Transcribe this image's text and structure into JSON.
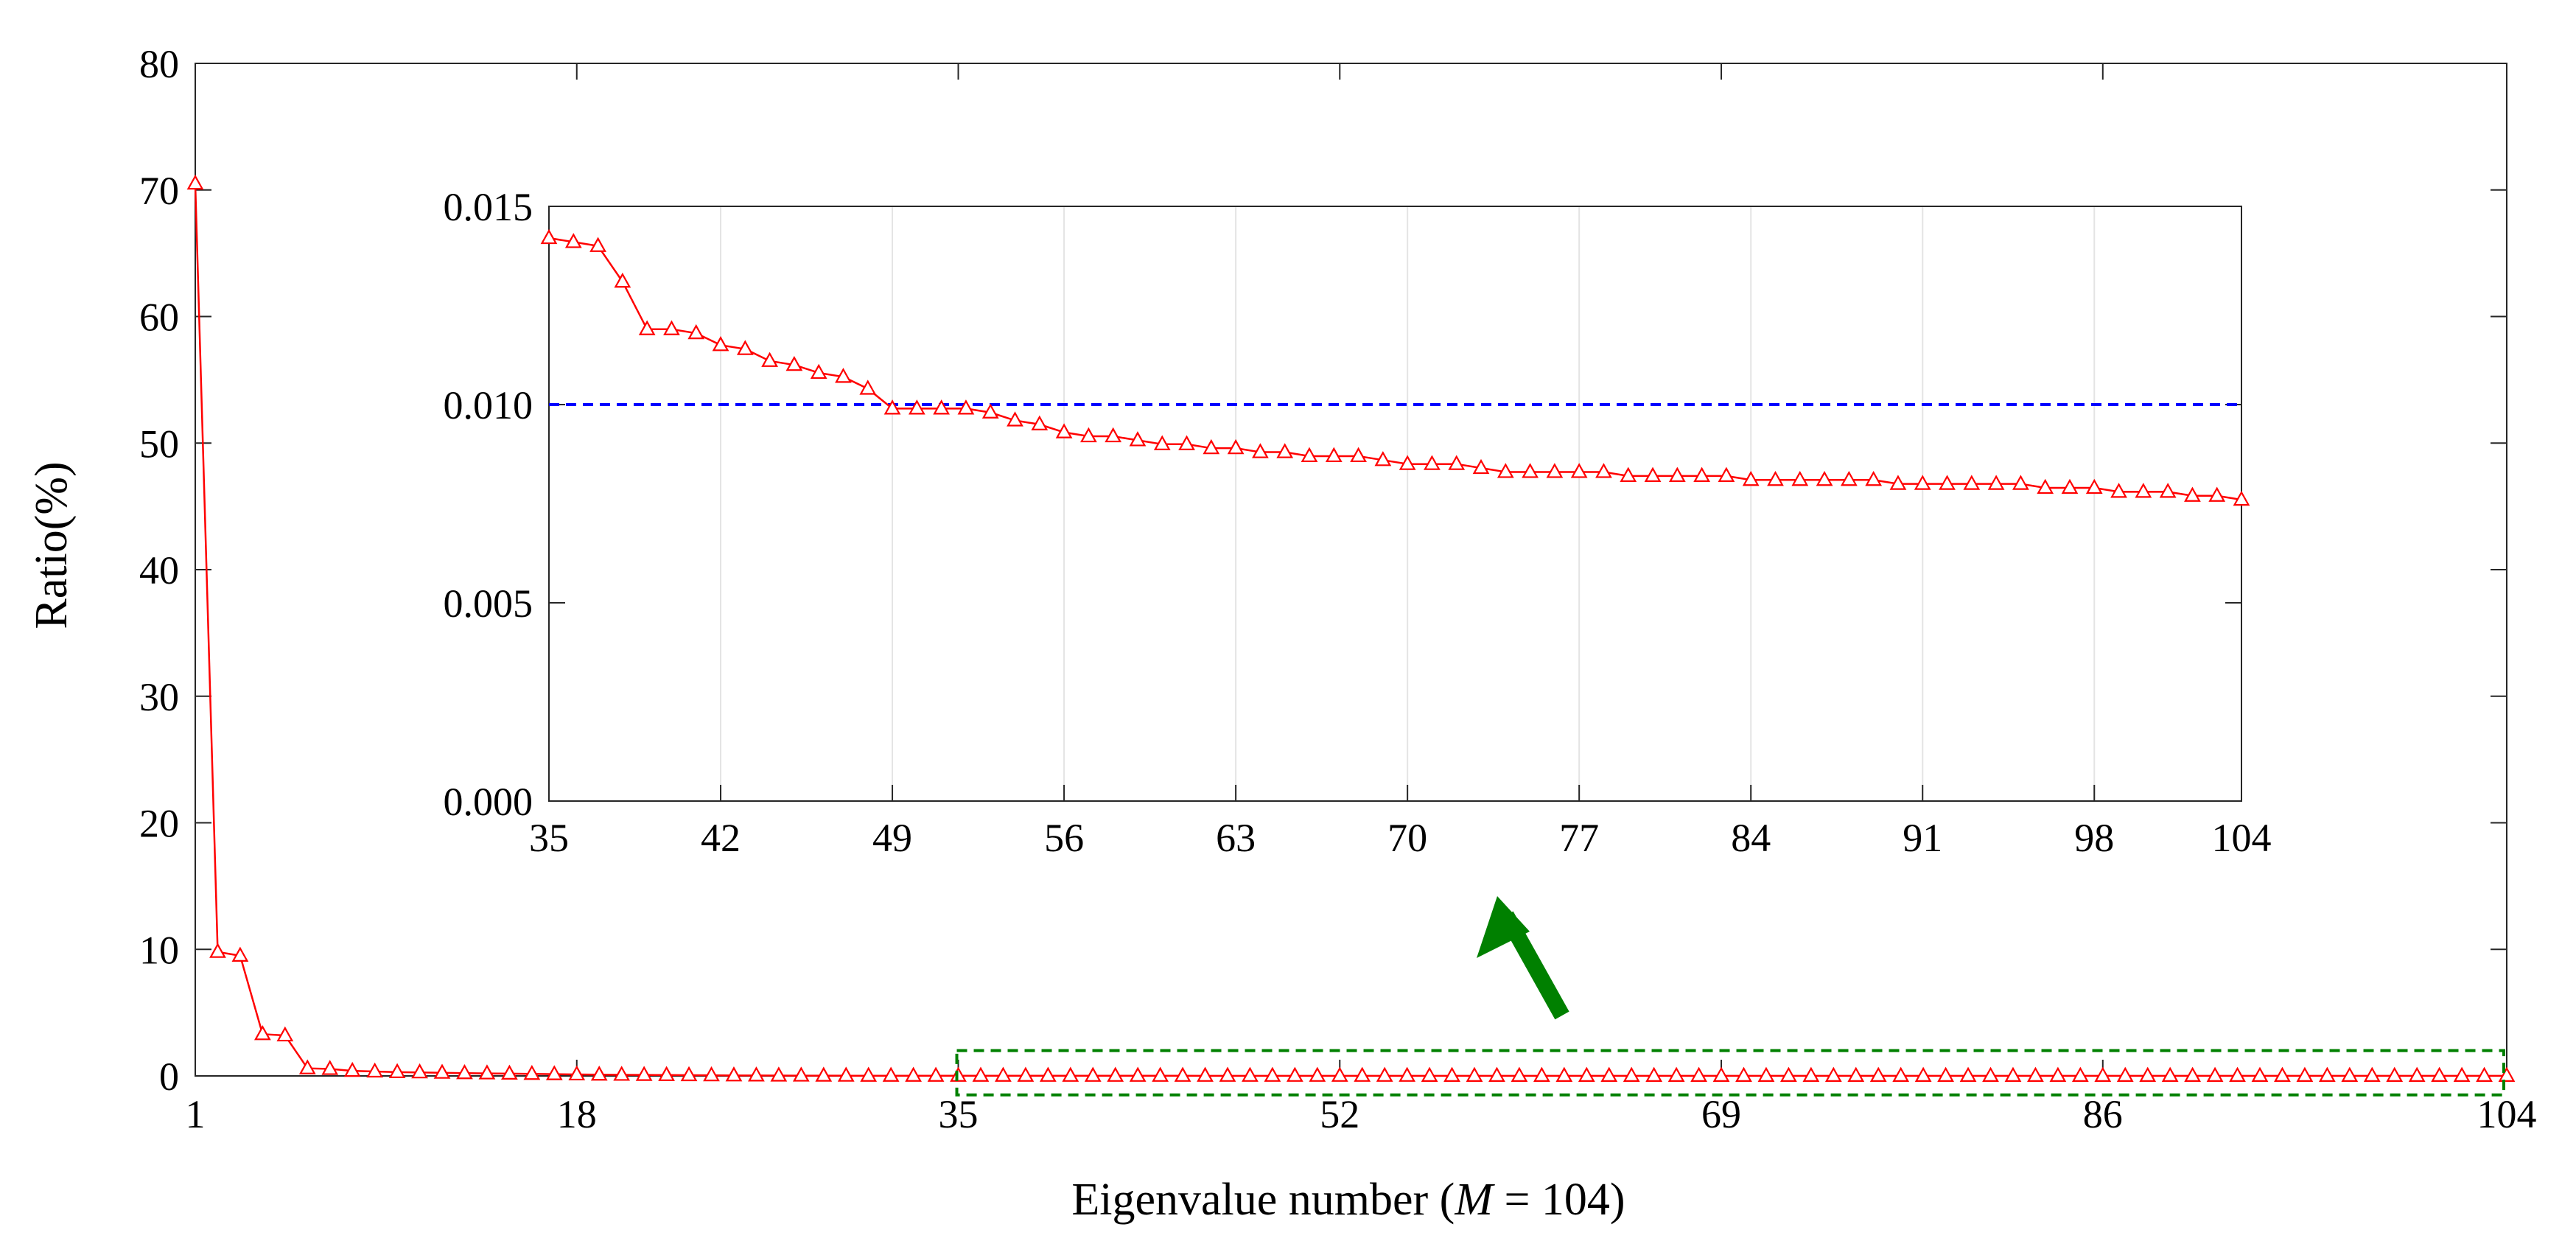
{
  "chart_data": [
    {
      "type": "line",
      "title": "",
      "xlabel": "Eigenvalue number (",
      "xlabel_italic": "M",
      "xlabel_tail": " = 104)",
      "ylabel": "Ratio(%)",
      "xlim": [
        1,
        104
      ],
      "ylim": [
        0,
        80
      ],
      "xticks": [
        "1",
        "18",
        "35",
        "52",
        "69",
        "86",
        "104"
      ],
      "yticks": [
        "0",
        "10",
        "20",
        "30",
        "40",
        "50",
        "60",
        "70",
        "80"
      ],
      "grid": false,
      "series": [
        {
          "color": "#ff0000",
          "marker": "triangle",
          "x": [
            1,
            2,
            3,
            4,
            5,
            6,
            7,
            8,
            9,
            10,
            11,
            12,
            13,
            14,
            15,
            16,
            17,
            18,
            19,
            20,
            21,
            22,
            23,
            24,
            25,
            26,
            27,
            28,
            29,
            30,
            31,
            32,
            33,
            34,
            35,
            36,
            37,
            38,
            39,
            40,
            41,
            42,
            43,
            44,
            45,
            46,
            47,
            48,
            49,
            50,
            51,
            52,
            53,
            54,
            55,
            56,
            57,
            58,
            59,
            60,
            61,
            62,
            63,
            64,
            65,
            66,
            67,
            68,
            69,
            70,
            71,
            72,
            73,
            74,
            75,
            76,
            77,
            78,
            79,
            80,
            81,
            82,
            83,
            84,
            85,
            86,
            87,
            88,
            89,
            90,
            91,
            92,
            93,
            94,
            95,
            96,
            97,
            98,
            99,
            100,
            101,
            102,
            103,
            104
          ],
          "y": [
            70.5,
            9.8,
            9.5,
            3.3,
            3.2,
            0.6,
            0.55,
            0.4,
            0.35,
            0.3,
            0.28,
            0.25,
            0.22,
            0.2,
            0.18,
            0.16,
            0.14,
            0.12,
            0.1,
            0.09,
            0.08,
            0.07,
            0.06,
            0.05,
            0.04,
            0.035,
            0.03,
            0.025,
            0.02,
            0.018,
            0.016,
            0.015,
            0.0145,
            0.0142,
            0.0142,
            0.0141,
            0.014,
            0.0131,
            0.0119,
            0.0119,
            0.0118,
            0.0115,
            0.0114,
            0.0111,
            0.011,
            0.0108,
            0.0107,
            0.0104,
            0.0099,
            0.0099,
            0.0099,
            0.0099,
            0.0098,
            0.0096,
            0.0095,
            0.0093,
            0.0092,
            0.0092,
            0.0091,
            0.009,
            0.009,
            0.0089,
            0.0089,
            0.0088,
            0.0088,
            0.0087,
            0.0087,
            0.0087,
            0.0086,
            0.0085,
            0.0085,
            0.0085,
            0.0084,
            0.0083,
            0.0083,
            0.0083,
            0.0083,
            0.0083,
            0.0082,
            0.0082,
            0.0082,
            0.0082,
            0.0082,
            0.0081,
            0.0081,
            0.0081,
            0.0081,
            0.0081,
            0.0081,
            0.008,
            0.008,
            0.008,
            0.008,
            0.008,
            0.008,
            0.0079,
            0.0079,
            0.0079,
            0.0078,
            0.0078,
            0.0078,
            0.0077,
            0.0077,
            0.0076
          ]
        }
      ],
      "annotations": {
        "zoom_box": {
          "x_from": 35,
          "x_to": 104,
          "y_from": -1.5,
          "y_to": 2,
          "color": "#008000",
          "style": "dashed"
        },
        "arrow_color": "#008000"
      }
    },
    {
      "type": "line",
      "title": "",
      "xlim": [
        35,
        104
      ],
      "ylim": [
        0,
        0.015
      ],
      "xticks": [
        "35",
        "42",
        "49",
        "56",
        "63",
        "70",
        "77",
        "84",
        "91",
        "98",
        "104"
      ],
      "yticks": [
        "0.000",
        "0.005",
        "0.010",
        "0.015"
      ],
      "grid": "vertical",
      "series": [
        {
          "color": "#ff0000",
          "marker": "triangle",
          "x": [
            35,
            36,
            37,
            38,
            39,
            40,
            41,
            42,
            43,
            44,
            45,
            46,
            47,
            48,
            49,
            50,
            51,
            52,
            53,
            54,
            55,
            56,
            57,
            58,
            59,
            60,
            61,
            62,
            63,
            64,
            65,
            66,
            67,
            68,
            69,
            70,
            71,
            72,
            73,
            74,
            75,
            76,
            77,
            78,
            79,
            80,
            81,
            82,
            83,
            84,
            85,
            86,
            87,
            88,
            89,
            90,
            91,
            92,
            93,
            94,
            95,
            96,
            97,
            98,
            99,
            100,
            101,
            102,
            103,
            104
          ],
          "y": [
            0.0142,
            0.0141,
            0.014,
            0.0131,
            0.0119,
            0.0119,
            0.0118,
            0.0115,
            0.0114,
            0.0111,
            0.011,
            0.0108,
            0.0107,
            0.0104,
            0.0099,
            0.0099,
            0.0099,
            0.0099,
            0.0098,
            0.0096,
            0.0095,
            0.0093,
            0.0092,
            0.0092,
            0.0091,
            0.009,
            0.009,
            0.0089,
            0.0089,
            0.0088,
            0.0088,
            0.0087,
            0.0087,
            0.0087,
            0.0086,
            0.0085,
            0.0085,
            0.0085,
            0.0084,
            0.0083,
            0.0083,
            0.0083,
            0.0083,
            0.0083,
            0.0082,
            0.0082,
            0.0082,
            0.0082,
            0.0082,
            0.0081,
            0.0081,
            0.0081,
            0.0081,
            0.0081,
            0.0081,
            0.008,
            0.008,
            0.008,
            0.008,
            0.008,
            0.008,
            0.0079,
            0.0079,
            0.0079,
            0.0078,
            0.0078,
            0.0078,
            0.0077,
            0.0077,
            0.0076
          ]
        }
      ],
      "threshold": {
        "y": 0.01,
        "color": "#0000ff",
        "style": "dashed"
      }
    }
  ]
}
